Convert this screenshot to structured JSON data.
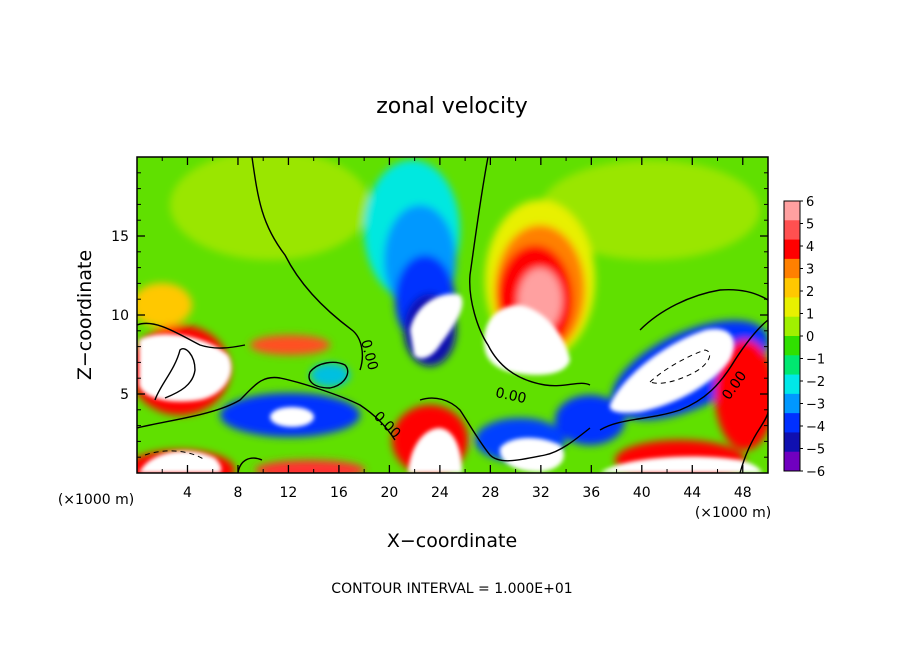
{
  "chart_data": {
    "type": "heatmap",
    "title": "zonal velocity",
    "xlabel": "X−coordinate",
    "ylabel": "Z−coordinate",
    "x_unit_left": "(×1000 m)",
    "x_unit_right": "(×1000 m)",
    "footer": "CONTOUR INTERVAL = 1.000E+01",
    "xlim": [
      0,
      50
    ],
    "ylim": [
      0,
      20
    ],
    "x_ticks": [
      4,
      8,
      12,
      16,
      20,
      24,
      28,
      32,
      36,
      40,
      44,
      48
    ],
    "y_ticks": [
      5,
      10,
      15
    ],
    "contour_labels": [
      "0.00",
      "0.00",
      "0.00",
      "0.00"
    ],
    "colorbar": {
      "range": [
        -6,
        6
      ],
      "ticks": [
        "6",
        "5",
        "4",
        "3",
        "2",
        "1",
        "0",
        "−1",
        "−2",
        "−3",
        "−4",
        "−5",
        "−6"
      ],
      "colors": [
        "#ffa0a0",
        "#ff5050",
        "#ff0000",
        "#ff8000",
        "#ffc800",
        "#e8f000",
        "#a0f000",
        "#30e000",
        "#00e870",
        "#00e8e8",
        "#0098ff",
        "#0030ff",
        "#1010b0",
        "#7000c0"
      ]
    }
  }
}
